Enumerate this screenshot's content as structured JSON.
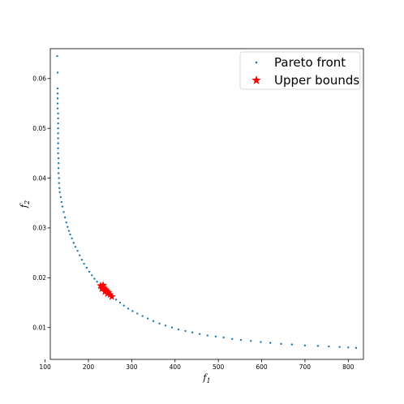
{
  "chart_data": {
    "type": "scatter",
    "xlabel": "f",
    "xlabel_sub": "1",
    "ylabel": "f",
    "ylabel_sub": "2",
    "xlim": [
      112,
      835
    ],
    "ylim": [
      0.0036,
      0.066
    ],
    "x_ticks": [
      100,
      200,
      300,
      400,
      500,
      600,
      700,
      800
    ],
    "y_ticks": [
      0.01,
      0.02,
      0.03,
      0.04,
      0.05,
      0.06
    ],
    "x_tick_labels": [
      "100",
      "200",
      "300",
      "400",
      "500",
      "600",
      "700",
      "800"
    ],
    "y_tick_labels": [
      "0.01",
      "0.02",
      "0.03",
      "0.04",
      "0.05",
      "0.06"
    ],
    "grid": false,
    "legend_position": "top-right",
    "series": [
      {
        "name": "Pareto front",
        "marker": "dot",
        "color": "#1f77b4",
        "points": [
          [
            128,
            0.0645
          ],
          [
            129,
            0.0612
          ],
          [
            129,
            0.058
          ],
          [
            129,
            0.057
          ],
          [
            129,
            0.056
          ],
          [
            129,
            0.055
          ],
          [
            129,
            0.054
          ],
          [
            130,
            0.053
          ],
          [
            130,
            0.052
          ],
          [
            130,
            0.051
          ],
          [
            130,
            0.05
          ],
          [
            130,
            0.049
          ],
          [
            130,
            0.048
          ],
          [
            130,
            0.047
          ],
          [
            130,
            0.046
          ],
          [
            130,
            0.045
          ],
          [
            131,
            0.044
          ],
          [
            131,
            0.043
          ],
          [
            131,
            0.042
          ],
          [
            131,
            0.041
          ],
          [
            132,
            0.04
          ],
          [
            132,
            0.039
          ],
          [
            133,
            0.038
          ],
          [
            134,
            0.0372
          ],
          [
            136,
            0.0362
          ],
          [
            138,
            0.0352
          ],
          [
            140,
            0.0343
          ],
          [
            143,
            0.0332
          ],
          [
            146,
            0.0321
          ],
          [
            149,
            0.0311
          ],
          [
            152,
            0.0302
          ],
          [
            155,
            0.0294
          ],
          [
            158,
            0.0287
          ],
          [
            162,
            0.0279
          ],
          [
            166,
            0.027
          ],
          [
            170,
            0.0262
          ],
          [
            175,
            0.0254
          ],
          [
            180,
            0.0245
          ],
          [
            185,
            0.0236
          ],
          [
            190,
            0.0228
          ],
          [
            196,
            0.022
          ],
          [
            202,
            0.0212
          ],
          [
            208,
            0.0205
          ],
          [
            214,
            0.0198
          ],
          [
            220,
            0.0192
          ],
          [
            227,
            0.0186
          ],
          [
            234,
            0.018
          ],
          [
            241,
            0.0174
          ],
          [
            248,
            0.0168
          ],
          [
            256,
            0.0162
          ],
          [
            264,
            0.0156
          ],
          [
            273,
            0.015
          ],
          [
            282,
            0.0144
          ],
          [
            292,
            0.0138
          ],
          [
            302,
            0.0133
          ],
          [
            313,
            0.0128
          ],
          [
            325,
            0.0123
          ],
          [
            337,
            0.0118
          ],
          [
            350,
            0.0113
          ],
          [
            364,
            0.0108
          ],
          [
            378,
            0.0104
          ],
          [
            393,
            0.01
          ],
          [
            408,
            0.0096
          ],
          [
            424,
            0.0093
          ],
          [
            440,
            0.009
          ],
          [
            457,
            0.0087
          ],
          [
            475,
            0.0084
          ],
          [
            494,
            0.0082
          ],
          [
            512,
            0.008
          ],
          [
            532,
            0.0077
          ],
          [
            552,
            0.0075
          ],
          [
            575,
            0.0073
          ],
          [
            598,
            0.0071
          ],
          [
            620,
            0.0069
          ],
          [
            645,
            0.0067
          ],
          [
            670,
            0.0066
          ],
          [
            700,
            0.0064
          ],
          [
            730,
            0.0063
          ],
          [
            755,
            0.0062
          ],
          [
            780,
            0.0061
          ],
          [
            800,
            0.006
          ],
          [
            818,
            0.0059
          ]
        ]
      },
      {
        "name": "Upper bounds",
        "marker": "star",
        "color": "#ff0000",
        "points": [
          [
            228,
            0.0184
          ],
          [
            232,
            0.0182
          ],
          [
            236,
            0.0179
          ],
          [
            240,
            0.0176
          ],
          [
            243,
            0.0173
          ],
          [
            246,
            0.017
          ],
          [
            250,
            0.0166
          ],
          [
            254,
            0.0162
          ],
          [
            231,
            0.0178
          ],
          [
            238,
            0.0172
          ],
          [
            244,
            0.0168
          ],
          [
            234,
            0.0185
          ]
        ]
      }
    ]
  }
}
